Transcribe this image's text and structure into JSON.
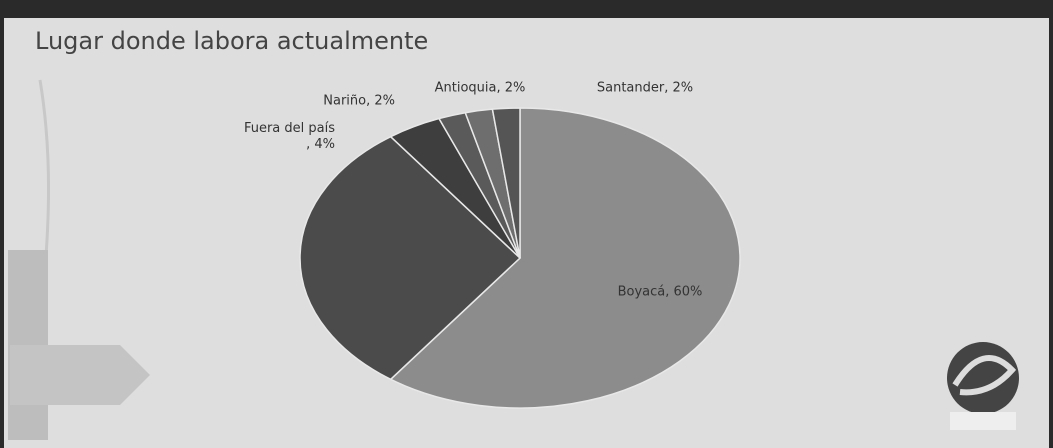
{
  "chart_data": {
    "type": "pie",
    "title": "Lugar donde labora actualmente",
    "values": [
      60,
      30,
      4,
      2,
      2,
      2
    ],
    "value_labels": [
      "Boyacá, 60%",
      null,
      "Fuera del país\n, 4%",
      "Nariño, 2%",
      "Antioquia, 2%",
      "Santander, 2%"
    ],
    "colors": [
      "#8c8c8c",
      "#4b4b4b",
      "#3e3e3e",
      "#5a5a5a",
      "#6e6e6e",
      "#555555"
    ]
  }
}
